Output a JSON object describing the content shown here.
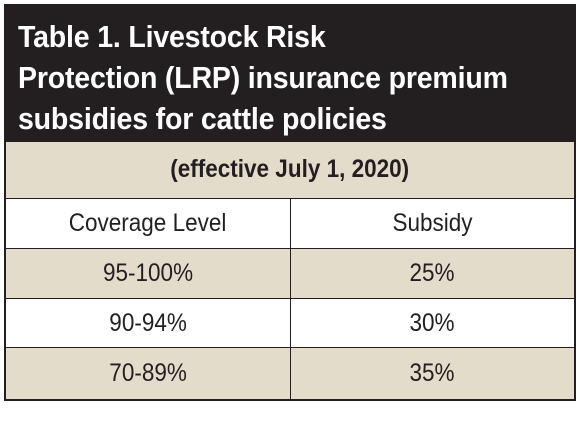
{
  "table": {
    "title_lines": [
      "Table 1. Livestock Risk",
      "Protection (LRP) insurance premium",
      "subsidies for cattle policies"
    ],
    "effective": "(effective July 1, 2020)",
    "headers": [
      "Coverage Level",
      "Subsidy"
    ],
    "rows": [
      [
        "95-100%",
        "25%"
      ],
      [
        "90-94%",
        "30%"
      ],
      [
        "70-89%",
        "35%"
      ]
    ]
  },
  "colors": {
    "title_background": "#231f20",
    "title_text": "#ffffff",
    "shaded_row": "#e4dccb",
    "border": "#231f20"
  }
}
